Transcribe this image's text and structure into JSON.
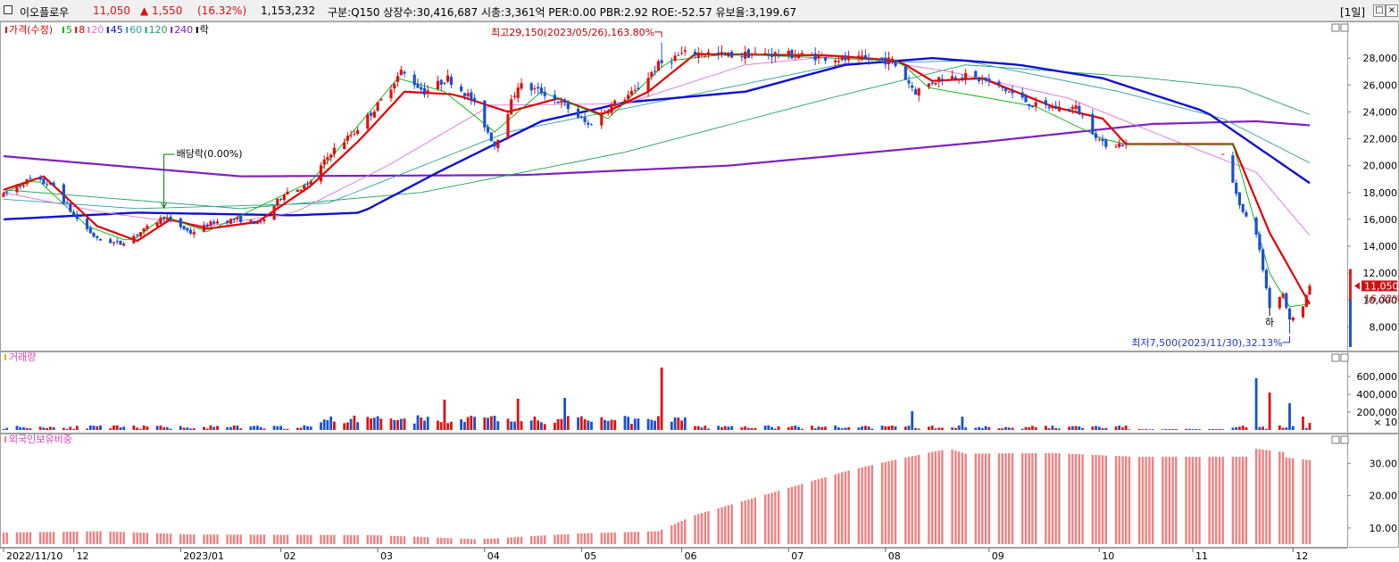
{
  "titlebar": {
    "name": "이오플로우",
    "price": "11,050",
    "change": "▲ 1,550",
    "change_pct": "(16.32%)",
    "volume": "1,153,232",
    "info": "구분:Q150 상장수:30,416,687 시총:3,361억 PER:0.00 PBR:2.92 ROE:-52.57 유보율:3,199.67",
    "period": "[1일]",
    "colors": {
      "up": "#e01010",
      "down": "#1a50d0"
    }
  },
  "chart_data": [
    {
      "type": "candlestick",
      "title": "가격(수정)",
      "legend": [
        {
          "label": "가격(수정)",
          "color": "#d00000"
        },
        {
          "label": "5",
          "color": "#00b000"
        },
        {
          "label": "8",
          "color": "#e00000"
        },
        {
          "label": "20",
          "color": "#e070e0"
        },
        {
          "label": "45",
          "color": "#1010d0"
        },
        {
          "label": "60",
          "color": "#30a0a0"
        },
        {
          "label": "120",
          "color": "#20a060"
        },
        {
          "label": "240",
          "color": "#8020c0"
        },
        {
          "label": "락",
          "color": "#000000"
        }
      ],
      "legend_position": "top-left",
      "ylim": [
        6500,
        30200
      ],
      "yticks": [
        8000,
        10000,
        12000,
        14000,
        16000,
        18000,
        20000,
        22000,
        24000,
        26000,
        28000
      ],
      "ytick_labels": [
        "8,000",
        "10,000",
        "12,000",
        "14,000",
        "16,000",
        "18,000",
        "20,000",
        "22,000",
        "24,000",
        "26,000",
        "28,000"
      ],
      "grid": false,
      "x_range": [
        "2022-11-10",
        "2023-12-06"
      ],
      "annotations": {
        "high": {
          "text": "최고29,150(2023/05/26),163.80%",
          "date": "2023-05-26",
          "value": 29150
        },
        "low": {
          "text": "최저7,500(2023/11/30),32.13%",
          "date": "2023-11-30",
          "value": 7500
        },
        "dividend": {
          "text": "배당락(0.00%)",
          "date": "2022-12-28"
        },
        "limit_down": {
          "text": "하",
          "date": "2023-11-24"
        },
        "current_price": {
          "text": "11,050",
          "value": 11050
        },
        "current_pct": {
          "text": "16.32%"
        }
      },
      "price_path": [
        [
          "2022-11-10",
          17800
        ],
        [
          "2022-11-18",
          19000
        ],
        [
          "2022-11-25",
          18500
        ],
        [
          "2022-12-01",
          16300
        ],
        [
          "2022-12-08",
          14500
        ],
        [
          "2022-12-15",
          14200
        ],
        [
          "2022-12-22",
          15200
        ],
        [
          "2022-12-28",
          16200
        ],
        [
          "2023-01-05",
          15000
        ],
        [
          "2023-01-12",
          15800
        ],
        [
          "2023-01-19",
          16000
        ],
        [
          "2023-01-26",
          15700
        ],
        [
          "2023-02-02",
          18000
        ],
        [
          "2023-02-09",
          18500
        ],
        [
          "2023-02-16",
          21000
        ],
        [
          "2023-02-23",
          22500
        ],
        [
          "2023-03-02",
          24500
        ],
        [
          "2023-03-09",
          27000
        ],
        [
          "2023-03-16",
          25500
        ],
        [
          "2023-03-23",
          26500
        ],
        [
          "2023-03-30",
          25000
        ],
        [
          "2023-04-06",
          21500
        ],
        [
          "2023-04-13",
          26000
        ],
        [
          "2023-04-20",
          25500
        ],
        [
          "2023-04-27",
          24500
        ],
        [
          "2023-05-04",
          23000
        ],
        [
          "2023-05-11",
          24500
        ],
        [
          "2023-05-18",
          25500
        ],
        [
          "2023-05-25",
          27500
        ],
        [
          "2023-06-01",
          28300
        ],
        [
          "2023-06-08",
          28400
        ],
        [
          "2023-06-15",
          28200
        ],
        [
          "2023-06-22",
          28300
        ],
        [
          "2023-06-29",
          28300
        ],
        [
          "2023-07-06",
          28200
        ],
        [
          "2023-07-13",
          28100
        ],
        [
          "2023-07-20",
          27900
        ],
        [
          "2023-07-27",
          27900
        ],
        [
          "2023-08-03",
          27800
        ],
        [
          "2023-08-10",
          25500
        ],
        [
          "2023-08-17",
          26500
        ],
        [
          "2023-08-24",
          26700
        ],
        [
          "2023-08-31",
          26300
        ],
        [
          "2023-09-07",
          25500
        ],
        [
          "2023-09-14",
          24500
        ],
        [
          "2023-09-21",
          24300
        ],
        [
          "2023-09-27",
          24300
        ],
        [
          "2023-10-05",
          21600
        ],
        [
          "2023-10-12",
          21600
        ],
        [
          "2023-10-19",
          21600
        ],
        [
          "2023-10-26",
          21600
        ],
        [
          "2023-11-02",
          21600
        ],
        [
          "2023-11-09",
          21600
        ],
        [
          "2023-11-16",
          16500
        ],
        [
          "2023-11-20",
          15000
        ],
        [
          "2023-11-24",
          9500
        ],
        [
          "2023-11-28",
          10500
        ],
        [
          "2023-11-30",
          8500
        ],
        [
          "2023-12-04",
          9500
        ],
        [
          "2023-12-06",
          11050
        ]
      ],
      "ma_series": [
        {
          "name": "240",
          "color": "#8020c0",
          "width": 2.2,
          "points": [
            [
              "2022-11-10",
              20700
            ],
            [
              "2023-01-20",
              19200
            ],
            [
              "2023-04-15",
              19300
            ],
            [
              "2023-06-15",
              20000
            ],
            [
              "2023-09-01",
              21800
            ],
            [
              "2023-10-20",
              23100
            ],
            [
              "2023-11-20",
              23300
            ],
            [
              "2023-12-06",
              23000
            ]
          ]
        },
        {
          "name": "120",
          "color": "#20a060",
          "width": 0.9,
          "points": [
            [
              "2022-11-10",
              18200
            ],
            [
              "2023-01-20",
              16800
            ],
            [
              "2023-03-15",
              18000
            ],
            [
              "2023-05-15",
              21000
            ],
            [
              "2023-07-15",
              25000
            ],
            [
              "2023-08-25",
              27500
            ],
            [
              "2023-10-15",
              26600
            ],
            [
              "2023-11-15",
              25800
            ],
            [
              "2023-12-06",
              23800
            ]
          ]
        },
        {
          "name": "60",
          "color": "#30a0a0",
          "width": 0.9,
          "points": [
            [
              "2022-11-10",
              17500
            ],
            [
              "2022-12-20",
              16800
            ],
            [
              "2023-02-15",
              17200
            ],
            [
              "2023-04-10",
              22500
            ],
            [
              "2023-05-20",
              24500
            ],
            [
              "2023-07-20",
              27600
            ],
            [
              "2023-08-25",
              27800
            ],
            [
              "2023-10-10",
              25500
            ],
            [
              "2023-11-10",
              23500
            ],
            [
              "2023-12-06",
              20200
            ]
          ]
        },
        {
          "name": "45",
          "color": "#1010d0",
          "width": 2.4,
          "points": [
            [
              "2022-11-10",
              16000
            ],
            [
              "2022-12-20",
              16500
            ],
            [
              "2023-02-05",
              16300
            ],
            [
              "2023-02-25",
              16500
            ],
            [
              "2023-03-20",
              19500
            ],
            [
              "2023-04-20",
              23300
            ],
            [
              "2023-05-15",
              24700
            ],
            [
              "2023-06-20",
              25500
            ],
            [
              "2023-07-20",
              27500
            ],
            [
              "2023-08-15",
              28000
            ],
            [
              "2023-09-10",
              27500
            ],
            [
              "2023-10-05",
              26500
            ],
            [
              "2023-11-05",
              24000
            ],
            [
              "2023-12-06",
              18700
            ]
          ]
        },
        {
          "name": "20",
          "color": "#e070e0",
          "width": 0.9,
          "points": [
            [
              "2022-11-10",
              18000
            ],
            [
              "2022-12-10",
              16500
            ],
            [
              "2023-01-10",
              15500
            ],
            [
              "2023-02-05",
              16500
            ],
            [
              "2023-03-05",
              20000
            ],
            [
              "2023-04-05",
              24500
            ],
            [
              "2023-05-15",
              24600
            ],
            [
              "2023-06-20",
              27500
            ],
            [
              "2023-07-20",
              28200
            ],
            [
              "2023-08-20",
              27000
            ],
            [
              "2023-09-25",
              25000
            ],
            [
              "2023-10-25",
              22000
            ],
            [
              "2023-11-20",
              19500
            ],
            [
              "2023-12-06",
              14800
            ]
          ]
        },
        {
          "name": "8",
          "color": "#e00000",
          "width": 2.2,
          "points": [
            [
              "2022-11-10",
              18200
            ],
            [
              "2022-11-22",
              19200
            ],
            [
              "2022-12-08",
              15500
            ],
            [
              "2022-12-20",
              14400
            ],
            [
              "2022-12-30",
              16000
            ],
            [
              "2023-01-10",
              15300
            ],
            [
              "2023-01-25",
              15800
            ],
            [
              "2023-02-10",
              18500
            ],
            [
              "2023-02-25",
              22000
            ],
            [
              "2023-03-10",
              25500
            ],
            [
              "2023-03-25",
              25300
            ],
            [
              "2023-04-10",
              24000
            ],
            [
              "2023-04-25",
              25000
            ],
            [
              "2023-05-08",
              23800
            ],
            [
              "2023-05-22",
              25500
            ],
            [
              "2023-06-05",
              28300
            ],
            [
              "2023-07-15",
              28200
            ],
            [
              "2023-08-05",
              27800
            ],
            [
              "2023-08-15",
              26300
            ],
            [
              "2023-08-30",
              26500
            ],
            [
              "2023-09-20",
              24400
            ],
            [
              "2023-10-05",
              23500
            ],
            [
              "2023-10-12",
              21600
            ],
            [
              "2023-11-13",
              21600
            ],
            [
              "2023-11-24",
              15000
            ],
            [
              "2023-12-06",
              9700
            ]
          ]
        },
        {
          "name": "5",
          "color": "#00b000",
          "width": 0.9,
          "points": [
            [
              "2022-11-10",
              18000
            ],
            [
              "2022-11-20",
              19000
            ],
            [
              "2022-12-05",
              15500
            ],
            [
              "2022-12-18",
              14300
            ],
            [
              "2022-12-28",
              16200
            ],
            [
              "2023-01-10",
              15100
            ],
            [
              "2023-02-10",
              18800
            ],
            [
              "2023-03-08",
              26500
            ],
            [
              "2023-03-22",
              25500
            ],
            [
              "2023-04-06",
              22500
            ],
            [
              "2023-04-20",
              25500
            ],
            [
              "2023-05-10",
              23500
            ],
            [
              "2023-05-28",
              27800
            ],
            [
              "2023-06-15",
              28300
            ],
            [
              "2023-08-05",
              27800
            ],
            [
              "2023-08-14",
              25800
            ],
            [
              "2023-09-15",
              24400
            ],
            [
              "2023-10-05",
              22000
            ],
            [
              "2023-10-12",
              21600
            ],
            [
              "2023-11-13",
              21600
            ],
            [
              "2023-11-24",
              12000
            ],
            [
              "2023-11-30",
              9500
            ],
            [
              "2023-12-06",
              9700
            ]
          ]
        }
      ]
    },
    {
      "type": "bar",
      "title": "거래량",
      "unit_label": "× 10",
      "ylim": [
        0,
        800000
      ],
      "yticks": [
        200000,
        400000,
        600000
      ],
      "ytick_labels": [
        "200,000",
        "400,000",
        "600,000"
      ],
      "note": "values in units of 10 shares",
      "spikes": [
        [
          "2023-02-15",
          110000
        ],
        [
          "2023-02-28",
          130000
        ],
        [
          "2023-03-22",
          340000
        ],
        [
          "2023-04-13",
          350000
        ],
        [
          "2023-04-27",
          360000
        ],
        [
          "2023-05-26",
          700000
        ],
        [
          "2023-05-30",
          140000
        ],
        [
          "2023-08-09",
          210000
        ],
        [
          "2023-08-24",
          150000
        ],
        [
          "2023-11-20",
          580000
        ],
        [
          "2023-11-24",
          420000
        ],
        [
          "2023-11-30",
          300000
        ],
        [
          "2023-12-04",
          150000
        ],
        [
          "2023-12-06",
          80000
        ]
      ]
    },
    {
      "type": "bar",
      "title": "외국인보유비중",
      "ylim": [
        5,
        37
      ],
      "yticks": [
        10,
        20,
        30
      ],
      "ytick_labels": [
        "10.00",
        "20.00",
        "30.00"
      ],
      "color": "#f08080",
      "path": [
        [
          "2022-11-10",
          8.6
        ],
        [
          "2022-12-10",
          9.0
        ],
        [
          "2023-01-05",
          8.0
        ],
        [
          "2023-03-01",
          7.8
        ],
        [
          "2023-04-01",
          6.5
        ],
        [
          "2023-05-01",
          8.3
        ],
        [
          "2023-05-25",
          9.0
        ],
        [
          "2023-06-05",
          14.0
        ],
        [
          "2023-06-25",
          20.0
        ],
        [
          "2023-07-20",
          27.5
        ],
        [
          "2023-07-30",
          30.0
        ],
        [
          "2023-08-15",
          33.5
        ],
        [
          "2023-08-20",
          34.5
        ],
        [
          "2023-08-25",
          33.0
        ],
        [
          "2023-09-20",
          33.2
        ],
        [
          "2023-10-15",
          32.0
        ],
        [
          "2023-11-17",
          32.0
        ],
        [
          "2023-11-20",
          34.5
        ],
        [
          "2023-11-28",
          33.5
        ],
        [
          "2023-11-29",
          31.8
        ],
        [
          "2023-12-06",
          31.0
        ]
      ]
    }
  ],
  "x_axis": {
    "ticks": [
      {
        "label": "2022/11/10",
        "date": "2022-11-10"
      },
      {
        "label": "12",
        "date": "2022-12-01"
      },
      {
        "label": "2023/01",
        "date": "2023-01-02"
      },
      {
        "label": "02",
        "date": "2023-02-01"
      },
      {
        "label": "03",
        "date": "2023-03-02"
      },
      {
        "label": "04",
        "date": "2023-04-03"
      },
      {
        "label": "05",
        "date": "2023-05-02"
      },
      {
        "label": "06",
        "date": "2023-06-01"
      },
      {
        "label": "07",
        "date": "2023-07-03"
      },
      {
        "label": "08",
        "date": "2023-08-01"
      },
      {
        "label": "09",
        "date": "2023-09-01"
      },
      {
        "label": "10",
        "date": "2023-10-04"
      },
      {
        "label": "11",
        "date": "2023-11-01"
      },
      {
        "label": "12",
        "date": "2023-12-01"
      }
    ]
  }
}
